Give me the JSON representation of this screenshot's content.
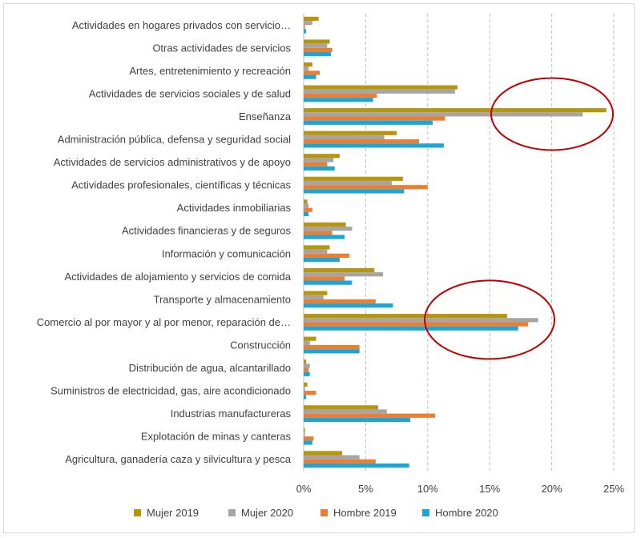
{
  "chart_data": {
    "type": "bar",
    "orientation": "horizontal",
    "categories": [
      "Actividades en hogares privados con servicio…",
      "Otras actividades de servicios",
      "Artes, entretenimiento y recreación",
      "Actividades de servicios sociales y de salud",
      "Enseñanza",
      "Administración pública, defensa y seguridad social",
      "Actividades de servicios administrativos y de apoyo",
      "Actividades profesionales, científicas y técnicas",
      "Actividades inmobiliarias",
      "Actividades financieras y de seguros",
      "Información y comunicación",
      "Actividades de alojamiento y servicios de comida",
      "Transporte y almacenamiento",
      "Comercio al por mayor y al por menor, reparación de…",
      "Construcción",
      "Distribución de agua, alcantarillado",
      "Suministros de electricidad, gas, aire acondicionado",
      "Industrias manufactureras",
      "Explotación de minas y canteras",
      "Agricultura, ganadería caza y silvicultura y pesca"
    ],
    "series": [
      {
        "name": "Mujer 2019",
        "color": "#b8960c",
        "values": [
          1.2,
          2.1,
          0.7,
          12.4,
          24.4,
          7.5,
          2.9,
          8.0,
          0.3,
          3.4,
          2.1,
          5.7,
          1.9,
          16.4,
          1.0,
          0.2,
          0.3,
          6.0,
          0.1,
          3.1
        ]
      },
      {
        "name": "Mujer  2020",
        "color": "#a5a5a5",
        "values": [
          0.7,
          1.9,
          0.4,
          12.2,
          22.5,
          6.5,
          2.4,
          7.1,
          0.4,
          3.9,
          1.9,
          6.4,
          1.6,
          18.9,
          0.5,
          0.5,
          0.1,
          6.7,
          0.1,
          4.5
        ]
      },
      {
        "name": "Hombre 2019",
        "color": "#ed7d31",
        "values": [
          0.1,
          2.3,
          1.3,
          5.9,
          11.4,
          9.3,
          1.9,
          10.0,
          0.7,
          2.3,
          3.7,
          3.3,
          5.8,
          18.1,
          4.5,
          0.4,
          1.0,
          10.6,
          0.8,
          5.8
        ]
      },
      {
        "name": "Hombre 2020",
        "color": "#1aa7d8",
        "values": [
          0.2,
          2.2,
          1.0,
          5.6,
          10.4,
          11.3,
          2.5,
          8.1,
          0.4,
          3.3,
          2.9,
          3.9,
          7.2,
          17.3,
          4.5,
          0.5,
          0.2,
          8.6,
          0.7,
          8.5
        ]
      }
    ],
    "xlim": [
      0,
      25
    ],
    "xticks": [
      "0%",
      "5%",
      "10%",
      "15%",
      "20%",
      "25%"
    ],
    "grid": "vertical dashed",
    "legend_position": "bottom",
    "annotations": [
      {
        "shape": "ellipse",
        "color": "#c00000",
        "around": "Enseñanza"
      },
      {
        "shape": "ellipse",
        "color": "#c00000",
        "around": "Comercio al por mayor y al por menor, reparación de…"
      }
    ]
  }
}
